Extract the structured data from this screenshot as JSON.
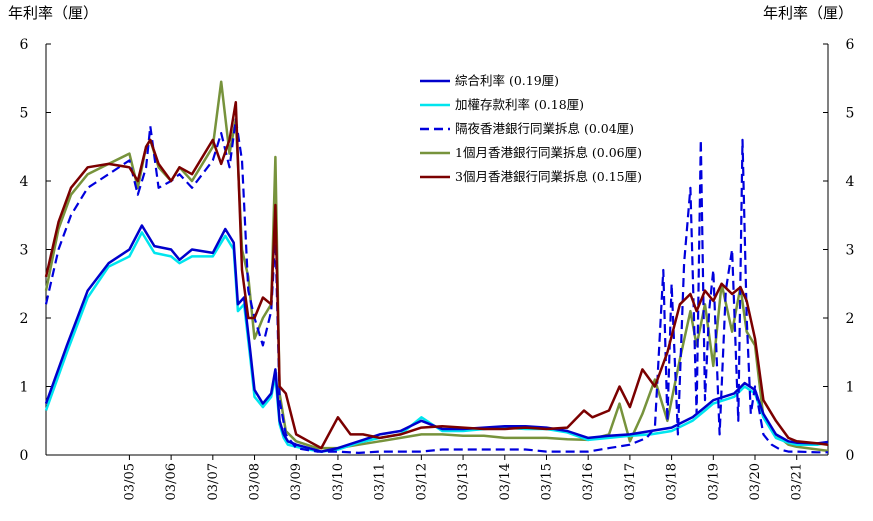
{
  "unit_label_left": "年利率（厘）",
  "unit_label_right": "年利率（厘）",
  "chart_data": {
    "type": "line",
    "title": "",
    "xlabel": "",
    "ylabel": "年利率（厘）",
    "ylim": [
      0,
      6
    ],
    "yticks": [
      "0",
      "1",
      "2",
      "3",
      "4",
      "5",
      "6"
    ],
    "xlim": [
      2003.0,
      2021.75
    ],
    "x_tick_labels": [
      "03/05",
      "03/06",
      "03/07",
      "03/08",
      "03/09",
      "03/10",
      "03/11",
      "03/12",
      "03/13",
      "03/14",
      "03/15",
      "03/16",
      "03/17",
      "03/18",
      "03/19",
      "03/20",
      "03/21"
    ],
    "x_tick_positions": [
      2005,
      2006,
      2007,
      2008,
      2009,
      2010,
      2011,
      2012,
      2013,
      2014,
      2015,
      2016,
      2017,
      2018,
      2019,
      2020,
      2021
    ],
    "legend_position": "top-right",
    "series": [
      {
        "name": "綜合利率 (0.19厘)",
        "color": "#0000cc",
        "dash": "solid",
        "x": [
          2003.0,
          2003.5,
          2004.0,
          2004.5,
          2005.0,
          2005.3,
          2005.6,
          2006.0,
          2006.2,
          2006.5,
          2007.0,
          2007.3,
          2007.5,
          2007.6,
          2007.75,
          2007.9,
          2008.0,
          2008.2,
          2008.4,
          2008.5,
          2008.6,
          2008.7,
          2008.8,
          2009.0,
          2009.3,
          2009.6,
          2010.0,
          2010.5,
          2011.0,
          2011.5,
          2012.0,
          2012.5,
          2013.0,
          2013.5,
          2014.0,
          2014.5,
          2015.0,
          2015.5,
          2016.0,
          2016.5,
          2017.0,
          2017.5,
          2018.0,
          2018.5,
          2018.8,
          2019.0,
          2019.5,
          2019.75,
          2020.0,
          2020.2,
          2020.5,
          2020.8,
          2021.0,
          2021.5,
          2021.75
        ],
        "y": [
          0.75,
          1.6,
          2.4,
          2.8,
          3.0,
          3.35,
          3.05,
          3.0,
          2.85,
          3.0,
          2.95,
          3.3,
          3.1,
          2.2,
          2.3,
          1.5,
          0.95,
          0.75,
          0.9,
          1.25,
          0.5,
          0.3,
          0.2,
          0.15,
          0.1,
          0.05,
          0.1,
          0.2,
          0.3,
          0.35,
          0.5,
          0.38,
          0.38,
          0.4,
          0.42,
          0.42,
          0.4,
          0.35,
          0.25,
          0.28,
          0.3,
          0.35,
          0.4,
          0.55,
          0.7,
          0.8,
          0.9,
          1.05,
          0.95,
          0.6,
          0.3,
          0.2,
          0.18,
          0.17,
          0.19
        ]
      },
      {
        "name": "加權存款利率 (0.18厘)",
        "color": "#00e5ee",
        "dash": "solid",
        "x": [
          2003.0,
          2003.5,
          2004.0,
          2004.5,
          2005.0,
          2005.3,
          2005.6,
          2006.0,
          2006.2,
          2006.5,
          2007.0,
          2007.3,
          2007.5,
          2007.6,
          2007.75,
          2007.9,
          2008.0,
          2008.2,
          2008.4,
          2008.5,
          2008.6,
          2008.7,
          2008.8,
          2009.0,
          2009.3,
          2009.6,
          2010.0,
          2010.5,
          2011.0,
          2011.5,
          2012.0,
          2012.5,
          2013.0,
          2013.5,
          2014.0,
          2014.5,
          2015.0,
          2015.5,
          2016.0,
          2016.5,
          2017.0,
          2017.5,
          2018.0,
          2018.5,
          2018.8,
          2019.0,
          2019.5,
          2019.75,
          2020.0,
          2020.2,
          2020.5,
          2020.8,
          2021.0,
          2021.5,
          2021.75
        ],
        "y": [
          0.65,
          1.5,
          2.3,
          2.75,
          2.9,
          3.25,
          2.95,
          2.9,
          2.8,
          2.9,
          2.9,
          3.2,
          3.0,
          2.1,
          2.2,
          1.4,
          0.85,
          0.7,
          0.85,
          1.15,
          0.45,
          0.25,
          0.15,
          0.12,
          0.08,
          0.05,
          0.08,
          0.18,
          0.25,
          0.3,
          0.55,
          0.35,
          0.35,
          0.38,
          0.4,
          0.38,
          0.38,
          0.33,
          0.22,
          0.25,
          0.28,
          0.3,
          0.35,
          0.5,
          0.65,
          0.75,
          0.85,
          1.0,
          0.9,
          0.55,
          0.25,
          0.18,
          0.15,
          0.15,
          0.18
        ]
      },
      {
        "name": "隔夜香港銀行同業拆息 (0.04厘)",
        "color": "#0000dd",
        "dash": "dashed",
        "x": [
          2003.0,
          2003.3,
          2003.6,
          2004.0,
          2004.5,
          2005.0,
          2005.2,
          2005.4,
          2005.5,
          2005.7,
          2006.0,
          2006.2,
          2006.5,
          2007.0,
          2007.2,
          2007.4,
          2007.55,
          2007.7,
          2007.85,
          2008.0,
          2008.2,
          2008.4,
          2008.5,
          2008.6,
          2008.75,
          2009.0,
          2009.5,
          2010.0,
          2010.5,
          2011.0,
          2011.5,
          2012.0,
          2012.5,
          2013.0,
          2013.5,
          2014.0,
          2014.5,
          2015.0,
          2015.5,
          2016.0,
          2016.5,
          2017.0,
          2017.4,
          2017.6,
          2017.8,
          2017.9,
          2018.0,
          2018.15,
          2018.3,
          2018.45,
          2018.6,
          2018.7,
          2018.8,
          2018.9,
          2019.0,
          2019.15,
          2019.3,
          2019.45,
          2019.6,
          2019.7,
          2019.8,
          2019.9,
          2020.0,
          2020.2,
          2020.4,
          2020.6,
          2020.8,
          2021.0,
          2021.5,
          2021.75
        ],
        "y": [
          2.2,
          3.0,
          3.5,
          3.9,
          4.1,
          4.3,
          3.8,
          4.2,
          4.8,
          3.9,
          4.0,
          4.1,
          3.9,
          4.3,
          4.7,
          4.2,
          4.9,
          4.3,
          2.4,
          2.0,
          1.6,
          2.1,
          3.2,
          0.8,
          0.3,
          0.1,
          0.05,
          0.05,
          0.03,
          0.05,
          0.05,
          0.05,
          0.08,
          0.08,
          0.08,
          0.08,
          0.08,
          0.05,
          0.05,
          0.05,
          0.1,
          0.15,
          0.25,
          0.4,
          2.7,
          0.5,
          2.5,
          0.3,
          2.8,
          3.9,
          0.6,
          4.6,
          0.8,
          2.1,
          2.7,
          0.3,
          2.4,
          3.0,
          0.5,
          4.6,
          2.0,
          0.6,
          1.0,
          0.3,
          0.15,
          0.08,
          0.05,
          0.05,
          0.04,
          0.04
        ]
      },
      {
        "name": "1個月香港銀行同業拆息 (0.06厘)",
        "color": "#77933c",
        "dash": "solid",
        "x": [
          2003.0,
          2003.3,
          2003.6,
          2004.0,
          2004.5,
          2005.0,
          2005.2,
          2005.4,
          2005.5,
          2005.7,
          2006.0,
          2006.2,
          2006.5,
          2007.0,
          2007.2,
          2007.4,
          2007.55,
          2007.7,
          2007.85,
          2008.0,
          2008.2,
          2008.4,
          2008.5,
          2008.6,
          2008.75,
          2009.0,
          2009.5,
          2010.0,
          2010.5,
          2011.0,
          2011.5,
          2012.0,
          2012.5,
          2013.0,
          2013.5,
          2014.0,
          2014.5,
          2015.0,
          2015.5,
          2016.0,
          2016.5,
          2016.75,
          2017.0,
          2017.3,
          2017.6,
          2017.9,
          2018.2,
          2018.45,
          2018.6,
          2018.8,
          2019.0,
          2019.2,
          2019.45,
          2019.65,
          2019.8,
          2020.0,
          2020.2,
          2020.5,
          2020.8,
          2021.0,
          2021.5,
          2021.75
        ],
        "y": [
          2.4,
          3.3,
          3.8,
          4.1,
          4.25,
          4.4,
          3.9,
          4.5,
          4.6,
          4.2,
          4.0,
          4.2,
          4.0,
          4.5,
          5.45,
          4.4,
          4.9,
          3.0,
          2.6,
          1.7,
          2.0,
          2.2,
          4.35,
          0.9,
          0.35,
          0.2,
          0.1,
          0.1,
          0.15,
          0.2,
          0.25,
          0.3,
          0.3,
          0.28,
          0.28,
          0.25,
          0.25,
          0.25,
          0.23,
          0.22,
          0.3,
          0.75,
          0.2,
          0.6,
          1.1,
          0.5,
          1.4,
          2.1,
          1.6,
          2.2,
          1.3,
          2.5,
          1.8,
          2.45,
          1.8,
          1.6,
          0.55,
          0.3,
          0.15,
          0.12,
          0.08,
          0.06
        ]
      },
      {
        "name": "3個月香港銀行同業拆息 (0.15厘)",
        "color": "#7b0000",
        "dash": "solid",
        "x": [
          2003.0,
          2003.3,
          2003.6,
          2004.0,
          2004.5,
          2005.0,
          2005.2,
          2005.4,
          2005.5,
          2005.7,
          2006.0,
          2006.2,
          2006.5,
          2007.0,
          2007.2,
          2007.4,
          2007.55,
          2007.7,
          2007.85,
          2008.0,
          2008.2,
          2008.4,
          2008.5,
          2008.6,
          2008.75,
          2009.0,
          2009.3,
          2009.6,
          2010.0,
          2010.3,
          2010.6,
          2011.0,
          2011.5,
          2012.0,
          2012.5,
          2013.0,
          2013.5,
          2014.0,
          2014.5,
          2015.0,
          2015.5,
          2015.9,
          2016.1,
          2016.5,
          2016.75,
          2017.0,
          2017.3,
          2017.6,
          2017.9,
          2018.2,
          2018.45,
          2018.6,
          2018.8,
          2019.0,
          2019.2,
          2019.45,
          2019.65,
          2019.8,
          2020.0,
          2020.2,
          2020.5,
          2020.8,
          2021.0,
          2021.5,
          2021.75
        ],
        "y": [
          2.6,
          3.4,
          3.9,
          4.2,
          4.25,
          4.2,
          4.0,
          4.5,
          4.6,
          4.25,
          4.0,
          4.2,
          4.1,
          4.6,
          4.25,
          4.6,
          5.15,
          2.7,
          2.0,
          2.0,
          2.3,
          2.2,
          3.65,
          1.0,
          0.9,
          0.3,
          0.2,
          0.1,
          0.55,
          0.3,
          0.3,
          0.25,
          0.3,
          0.4,
          0.42,
          0.4,
          0.38,
          0.38,
          0.4,
          0.38,
          0.4,
          0.65,
          0.55,
          0.65,
          1.0,
          0.7,
          1.25,
          1.0,
          1.5,
          2.2,
          2.35,
          2.1,
          2.4,
          2.25,
          2.5,
          2.35,
          2.45,
          2.25,
          1.7,
          0.8,
          0.5,
          0.25,
          0.2,
          0.17,
          0.15
        ]
      }
    ]
  }
}
